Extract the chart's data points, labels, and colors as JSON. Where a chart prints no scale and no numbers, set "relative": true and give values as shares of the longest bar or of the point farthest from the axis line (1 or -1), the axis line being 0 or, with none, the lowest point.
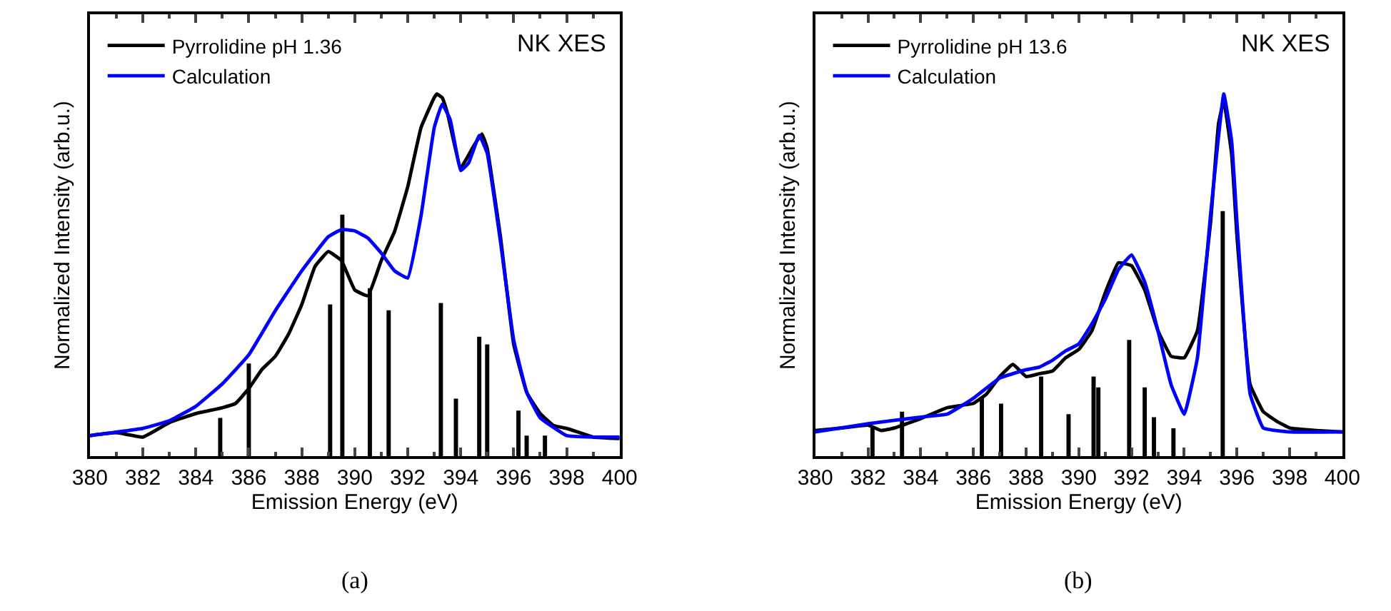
{
  "chart_data": [
    {
      "type": "line",
      "xlabel": "Emission Energy (eV)",
      "ylabel": "Normalized Intensity (arb.u.)",
      "relative": true,
      "xlim": [
        380,
        400
      ],
      "xticks": [
        380,
        382,
        384,
        386,
        388,
        390,
        392,
        394,
        396,
        398,
        400
      ],
      "legend": "top left",
      "marker": "none",
      "line_style": "solid",
      "annotations": [
        "NK XES",
        "(a)"
      ],
      "series": [
        {
          "name": "Pyrrolidine pH 1.36",
          "color": "#000000",
          "x": [
            380,
            381,
            382,
            383,
            384,
            385,
            385.5,
            386,
            386.5,
            387,
            387.5,
            388,
            388.5,
            389,
            389.5,
            390,
            390.5,
            391,
            391.5,
            392,
            392.5,
            393,
            393.1,
            393.3,
            393.5,
            394,
            394.5,
            394.8,
            395,
            395.5,
            396,
            396.5,
            397,
            397.5,
            398,
            398.5,
            399,
            400
          ],
          "values": [
            0.057,
            0.065,
            0.053,
            0.093,
            0.118,
            0.134,
            0.146,
            0.187,
            0.24,
            0.276,
            0.337,
            0.419,
            0.524,
            0.565,
            0.54,
            0.459,
            0.443,
            0.54,
            0.62,
            0.744,
            0.907,
            0.99,
            1,
            0.99,
            0.947,
            0.797,
            0.858,
            0.89,
            0.85,
            0.606,
            0.309,
            0.175,
            0.118,
            0.085,
            0.077,
            0.065,
            0.053,
            0.049
          ]
        },
        {
          "name": "Calculation",
          "color": "#0000ff",
          "x": [
            380,
            382,
            383,
            384,
            385,
            386,
            387,
            388,
            389,
            389.5,
            390,
            390.5,
            391,
            391.5,
            392,
            392.5,
            393,
            393.3,
            393.6,
            394,
            394.3,
            394.7,
            395,
            395.5,
            396,
            396.5,
            397,
            398,
            399,
            400
          ],
          "values": [
            0.057,
            0.077,
            0.098,
            0.138,
            0.2,
            0.28,
            0.402,
            0.512,
            0.606,
            0.626,
            0.622,
            0.602,
            0.561,
            0.512,
            0.492,
            0.663,
            0.907,
            0.972,
            0.93,
            0.789,
            0.81,
            0.886,
            0.837,
            0.593,
            0.321,
            0.175,
            0.106,
            0.057,
            0.053,
            0.053
          ]
        },
        {
          "type": "bar",
          "color": "#000000",
          "x": [
            384.92,
            386.0,
            389.07,
            389.53,
            390.57,
            391.28,
            393.25,
            393.82,
            394.7,
            395.0,
            396.18,
            396.49,
            397.18
          ],
          "values": [
            0.106,
            0.256,
            0.419,
            0.667,
            0.464,
            0.403,
            0.423,
            0.159,
            0.33,
            0.309,
            0.126,
            0.057,
            0.057
          ]
        }
      ]
    },
    {
      "type": "line",
      "xlabel": "Emission Energy (eV)",
      "ylabel": "Normalized Intensity (arb.u.)",
      "relative": true,
      "xlim": [
        380,
        400
      ],
      "xticks": [
        380,
        382,
        384,
        386,
        388,
        390,
        392,
        394,
        396,
        398,
        400
      ],
      "legend": "top left",
      "marker": "none",
      "line_style": "solid",
      "annotations": [
        "NK XES",
        "(b)"
      ],
      "series": [
        {
          "name": "Pyrrolidine pH 13.6",
          "color": "#000000",
          "x": [
            380,
            381,
            382,
            382.5,
            383,
            384,
            385,
            386,
            386.5,
            387,
            387.5,
            388,
            388.5,
            389,
            389.5,
            390,
            390.5,
            391,
            391.5,
            392,
            392.5,
            393,
            393.5,
            394,
            394.5,
            395,
            395.3,
            395.5,
            395.8,
            396,
            396.5,
            397,
            397.5,
            398,
            399,
            400
          ],
          "values": [
            0.071,
            0.078,
            0.086,
            0.071,
            0.078,
            0.104,
            0.134,
            0.146,
            0.172,
            0.22,
            0.254,
            0.22,
            0.228,
            0.235,
            0.272,
            0.295,
            0.347,
            0.451,
            0.534,
            0.526,
            0.459,
            0.347,
            0.276,
            0.272,
            0.347,
            0.646,
            0.918,
            0.981,
            0.832,
            0.608,
            0.198,
            0.123,
            0.097,
            0.078,
            0.071,
            0.067
          ]
        },
        {
          "name": "Calculation",
          "color": "#0000ff",
          "x": [
            380,
            382,
            384,
            385,
            386,
            387,
            388,
            388.5,
            389,
            389.5,
            390,
            390.5,
            391,
            391.5,
            392,
            392.5,
            393,
            393.5,
            394,
            394.5,
            395,
            395.5,
            395.8,
            396,
            396.5,
            397,
            398,
            400
          ],
          "values": [
            0.067,
            0.09,
            0.108,
            0.116,
            0.16,
            0.216,
            0.239,
            0.246,
            0.265,
            0.291,
            0.31,
            0.366,
            0.433,
            0.515,
            0.556,
            0.481,
            0.347,
            0.198,
            0.116,
            0.272,
            0.668,
            1,
            0.869,
            0.646,
            0.172,
            0.078,
            0.067,
            0.067
          ]
        },
        {
          "type": "bar",
          "color": "#000000",
          "x": [
            382.17,
            383.29,
            386.32,
            387.05,
            388.57,
            389.61,
            390.56,
            390.74,
            391.91,
            392.5,
            392.85,
            393.59,
            395.46
          ],
          "values": [
            0.078,
            0.123,
            0.164,
            0.145,
            0.22,
            0.116,
            0.22,
            0.19,
            0.321,
            0.19,
            0.108,
            0.077,
            0.677
          ]
        }
      ]
    }
  ]
}
